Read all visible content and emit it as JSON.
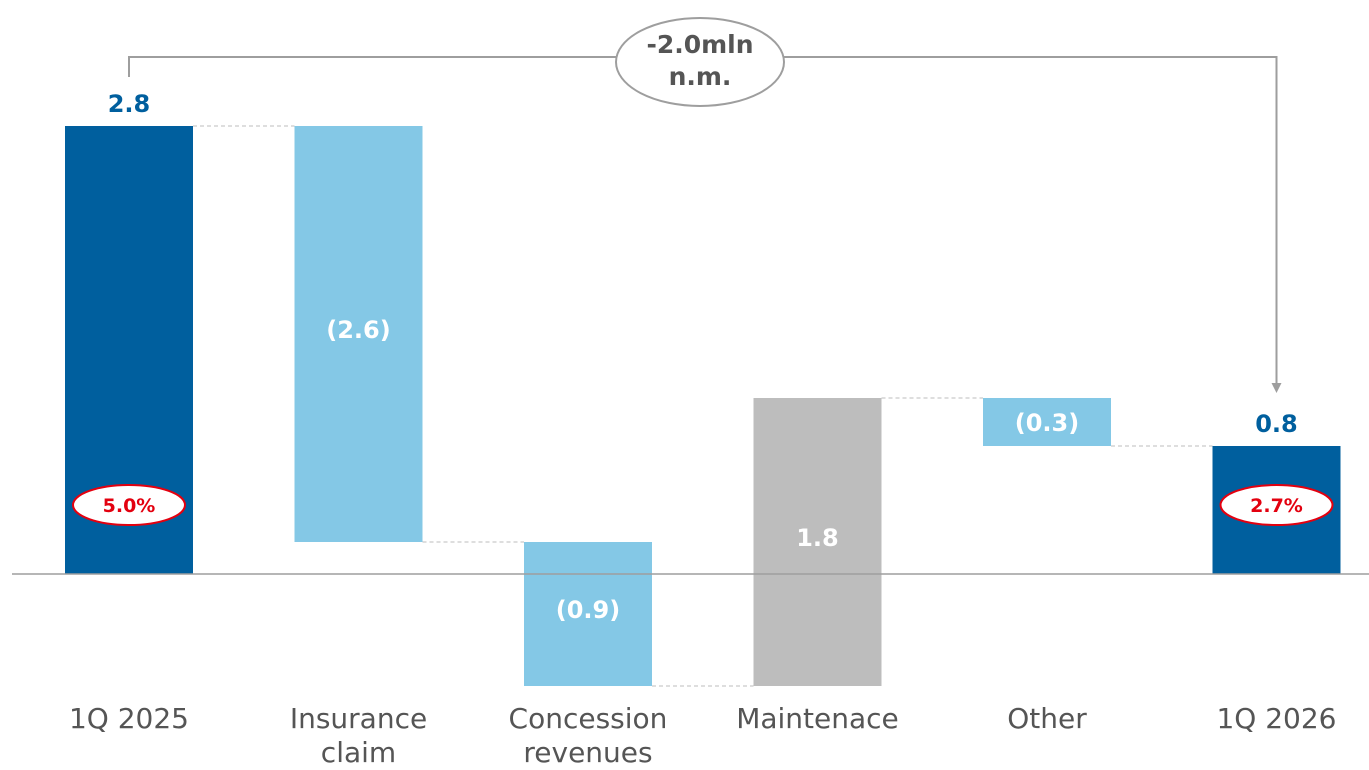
{
  "chart_data": {
    "type": "bar",
    "subtype": "waterfall",
    "categories": [
      "1Q 2025",
      "Insurance\nclaim",
      "Concession\nrevenues",
      "Maintenace",
      "Other",
      "1Q 2026"
    ],
    "values": [
      2.8,
      -2.6,
      -0.9,
      1.8,
      -0.3,
      0.8
    ],
    "kinds": [
      "total",
      "delta",
      "delta",
      "delta",
      "delta",
      "total"
    ],
    "value_labels": [
      "2.8",
      "(2.6)",
      "(0.9)",
      "1.8",
      "(0.3)",
      "0.8"
    ],
    "margin_labels": {
      "0": "5.0%",
      "5": "2.7%"
    },
    "bubble_lines": [
      "-2.0mln",
      "n.m."
    ],
    "ylim": [
      -0.7,
      2.8
    ],
    "gridlines": false,
    "colors": {
      "total": "#005f9e",
      "negative": "#84c8e6",
      "positive": "#bdbdbd",
      "total_label": "#005f9e",
      "inside_label": "#ffffff",
      "margin_text": "#e3000f",
      "margin_border": "#e3000f",
      "axis": "#9e9e9e",
      "connector": "#bdbdbd",
      "bubble_border": "#9e9e9e",
      "bubble_text": "#555555",
      "category_text": "#555555"
    }
  }
}
